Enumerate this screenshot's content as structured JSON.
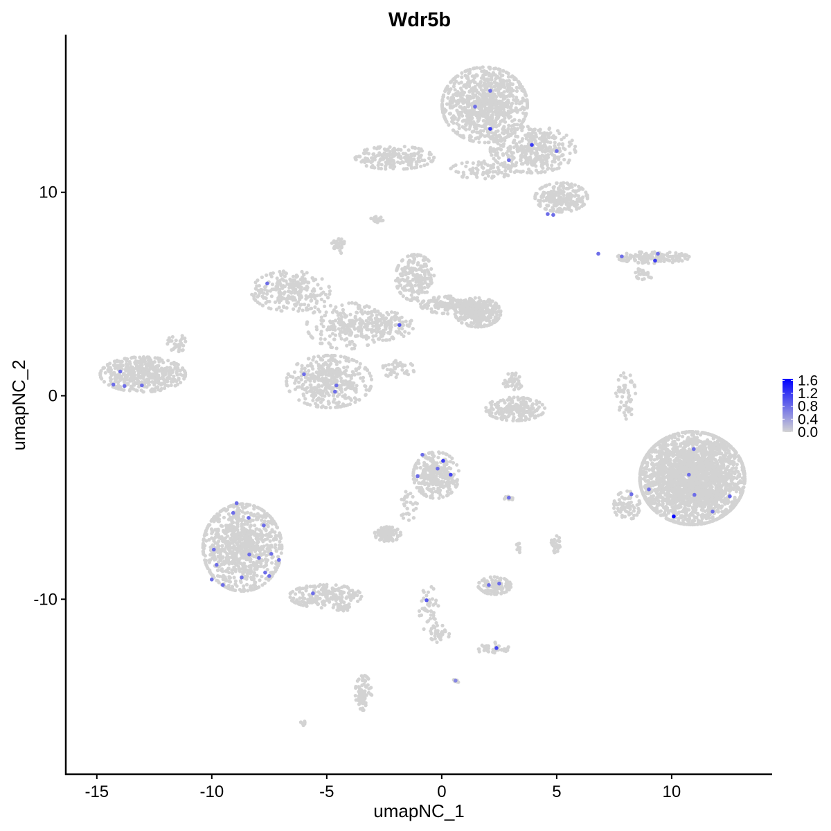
{
  "chart_data": {
    "type": "scatter",
    "title": "Wdr5b",
    "xlabel": "umapNC_1",
    "ylabel": "umapNC_2",
    "xlim": [
      -16.35,
      14.37
    ],
    "ylim": [
      -18.6,
      17.75
    ],
    "x_ticks": [
      "-15",
      "-10",
      "-5",
      "0",
      "5",
      "10"
    ],
    "x_tick_values": [
      -15,
      -10,
      -5,
      0,
      5,
      10
    ],
    "y_ticks": [
      "-10",
      "0",
      "10"
    ],
    "y_tick_values": [
      -10,
      0,
      10
    ],
    "grid": false,
    "color_scale": {
      "low_color": "#d3d3d3",
      "high_color": "#0000ff",
      "min": 0.0,
      "max": 1.65,
      "labels": [
        "1.6",
        "1.2",
        "0.8",
        "0.4",
        "0.0"
      ],
      "label_values": [
        1.6,
        1.2,
        0.8,
        0.4,
        0.0
      ],
      "legend_placement": "right"
    },
    "zero_expression_regions": [
      {
        "center": [
          1.87,
          14.3
        ],
        "spread": [
          1.3,
          1.3
        ],
        "n": 900
      },
      {
        "center": [
          3.97,
          12.1
        ],
        "spread": [
          1.3,
          0.8
        ],
        "n": 400
      },
      {
        "center": [
          5.2,
          9.75
        ],
        "spread": [
          0.8,
          0.5
        ],
        "n": 250
      },
      {
        "center": [
          -2.05,
          11.7
        ],
        "spread": [
          1.2,
          0.4
        ],
        "n": 200
      },
      {
        "center": [
          1.8,
          11.1
        ],
        "spread": [
          1.0,
          0.3
        ],
        "n": 80
      },
      {
        "center": [
          -2.8,
          8.65
        ],
        "spread": [
          0.2,
          0.15
        ],
        "n": 20
      },
      {
        "center": [
          -4.5,
          7.4
        ],
        "spread": [
          0.2,
          0.3
        ],
        "n": 30
      },
      {
        "center": [
          9.2,
          6.8
        ],
        "spread": [
          1.1,
          0.2
        ],
        "n": 150
      },
      {
        "center": [
          8.8,
          6.0
        ],
        "spread": [
          0.3,
          0.2
        ],
        "n": 25
      },
      {
        "center": [
          -6.57,
          5.14
        ],
        "spread": [
          1.2,
          0.7
        ],
        "n": 250
      },
      {
        "center": [
          -4.16,
          3.44
        ],
        "spread": [
          1.2,
          0.8
        ],
        "n": 200
      },
      {
        "center": [
          -4.9,
          0.7
        ],
        "spread": [
          1.3,
          0.9
        ],
        "n": 400
      },
      {
        "center": [
          -1.15,
          5.8
        ],
        "spread": [
          0.6,
          0.8
        ],
        "n": 200
      },
      {
        "center": [
          -2.65,
          3.44
        ],
        "spread": [
          1.0,
          0.5
        ],
        "n": 150
      },
      {
        "center": [
          1.57,
          4.1
        ],
        "spread": [
          0.7,
          0.5
        ],
        "n": 300
      },
      {
        "center": [
          0.36,
          4.46
        ],
        "spread": [
          0.9,
          0.3
        ],
        "n": 150
      },
      {
        "center": [
          -1.9,
          1.3
        ],
        "spread": [
          0.5,
          0.3
        ],
        "n": 40
      },
      {
        "center": [
          -13.0,
          1.05
        ],
        "spread": [
          1.3,
          0.6
        ],
        "n": 450
      },
      {
        "center": [
          -11.5,
          2.6
        ],
        "spread": [
          0.3,
          0.3
        ],
        "n": 30
      },
      {
        "center": [
          3.2,
          -0.65
        ],
        "spread": [
          0.9,
          0.4
        ],
        "n": 200
      },
      {
        "center": [
          3.1,
          0.7
        ],
        "spread": [
          0.3,
          0.3
        ],
        "n": 40
      },
      {
        "center": [
          8.0,
          0.0
        ],
        "spread": [
          0.3,
          0.8
        ],
        "n": 50
      },
      {
        "center": [
          10.9,
          -4.05
        ],
        "spread": [
          1.6,
          1.6
        ],
        "n": 2500
      },
      {
        "center": [
          8.05,
          -5.4
        ],
        "spread": [
          0.4,
          0.5
        ],
        "n": 80
      },
      {
        "center": [
          -0.24,
          -3.9
        ],
        "spread": [
          0.7,
          0.8
        ],
        "n": 300
      },
      {
        "center": [
          -2.35,
          -6.8
        ],
        "spread": [
          0.4,
          0.25
        ],
        "n": 100
      },
      {
        "center": [
          -1.45,
          -5.4
        ],
        "spread": [
          0.3,
          0.5
        ],
        "n": 30
      },
      {
        "center": [
          2.92,
          -5.0
        ],
        "spread": [
          0.15,
          0.1
        ],
        "n": 15
      },
      {
        "center": [
          4.97,
          -7.3
        ],
        "spread": [
          0.15,
          0.3
        ],
        "n": 25
      },
      {
        "center": [
          3.3,
          -7.45
        ],
        "spread": [
          0.1,
          0.3
        ],
        "n": 10
      },
      {
        "center": [
          -8.67,
          -7.46
        ],
        "spread": [
          1.2,
          1.5
        ],
        "n": 900
      },
      {
        "center": [
          -5.06,
          -9.85
        ],
        "spread": [
          1.1,
          0.4
        ],
        "n": 200
      },
      {
        "center": [
          -4.3,
          -10.35
        ],
        "spread": [
          0.3,
          0.15
        ],
        "n": 30
      },
      {
        "center": [
          2.3,
          -9.33
        ],
        "spread": [
          0.5,
          0.3
        ],
        "n": 100
      },
      {
        "center": [
          -0.55,
          -10.5
        ],
        "spread": [
          0.3,
          0.8
        ],
        "n": 40
      },
      {
        "center": [
          -0.1,
          -11.7
        ],
        "spread": [
          0.3,
          0.3
        ],
        "n": 30
      },
      {
        "center": [
          2.2,
          -12.4
        ],
        "spread": [
          0.5,
          0.2
        ],
        "n": 40
      },
      {
        "center": [
          -3.4,
          -14.6
        ],
        "spread": [
          0.25,
          0.6
        ],
        "n": 80
      },
      {
        "center": [
          -6.05,
          -16.1
        ],
        "spread": [
          0.1,
          0.1
        ],
        "n": 8
      },
      {
        "center": [
          0.6,
          -14.0
        ],
        "spread": [
          0.1,
          0.1
        ],
        "n": 6
      }
    ],
    "expressing_cells": [
      {
        "x": 2.11,
        "y": 14.99,
        "value": 0.8
      },
      {
        "x": 1.45,
        "y": 14.21,
        "value": 0.8
      },
      {
        "x": 2.11,
        "y": 13.12,
        "value": 1.2
      },
      {
        "x": 3.92,
        "y": 12.33,
        "value": 1.2
      },
      {
        "x": 5.0,
        "y": 12.03,
        "value": 0.8
      },
      {
        "x": 2.92,
        "y": 11.58,
        "value": 0.8
      },
      {
        "x": 4.61,
        "y": 8.93,
        "value": 0.8
      },
      {
        "x": 4.85,
        "y": 8.89,
        "value": 0.8
      },
      {
        "x": 6.81,
        "y": 6.98,
        "value": 0.8
      },
      {
        "x": 7.83,
        "y": 6.85,
        "value": 0.8
      },
      {
        "x": 9.28,
        "y": 6.64,
        "value": 1.2
      },
      {
        "x": 9.4,
        "y": 6.98,
        "value": 0.8
      },
      {
        "x": -7.59,
        "y": 5.52,
        "value": 0.8
      },
      {
        "x": -1.84,
        "y": 3.48,
        "value": 1.0
      },
      {
        "x": -5.99,
        "y": 1.06,
        "value": 0.8
      },
      {
        "x": -4.58,
        "y": 0.51,
        "value": 0.8
      },
      {
        "x": -4.64,
        "y": 0.2,
        "value": 0.8
      },
      {
        "x": -13.98,
        "y": 1.19,
        "value": 0.8
      },
      {
        "x": -14.28,
        "y": 0.55,
        "value": 0.8
      },
      {
        "x": -13.8,
        "y": 0.48,
        "value": 0.8
      },
      {
        "x": -13.04,
        "y": 0.51,
        "value": 0.8
      },
      {
        "x": -0.84,
        "y": -2.9,
        "value": 0.8
      },
      {
        "x": 0.06,
        "y": -3.2,
        "value": 1.2
      },
      {
        "x": -0.18,
        "y": -3.58,
        "value": 0.8
      },
      {
        "x": -1.05,
        "y": -3.95,
        "value": 0.8
      },
      {
        "x": 0.39,
        "y": -3.88,
        "value": 1.1
      },
      {
        "x": 2.92,
        "y": -5.01,
        "value": 0.8
      },
      {
        "x": 10.96,
        "y": -2.62,
        "value": 0.8
      },
      {
        "x": 10.75,
        "y": -3.88,
        "value": 0.8
      },
      {
        "x": 9.01,
        "y": -4.6,
        "value": 0.8
      },
      {
        "x": 8.25,
        "y": -4.84,
        "value": 0.8
      },
      {
        "x": 10.99,
        "y": -4.87,
        "value": 0.8
      },
      {
        "x": 12.53,
        "y": -4.94,
        "value": 0.9
      },
      {
        "x": 11.78,
        "y": -5.69,
        "value": 0.8
      },
      {
        "x": 10.09,
        "y": -5.93,
        "value": 1.6
      },
      {
        "x": -8.92,
        "y": -5.28,
        "value": 0.8
      },
      {
        "x": -9.07,
        "y": -5.76,
        "value": 0.8
      },
      {
        "x": -8.4,
        "y": -6.0,
        "value": 0.8
      },
      {
        "x": -7.74,
        "y": -6.37,
        "value": 0.8
      },
      {
        "x": -9.91,
        "y": -7.56,
        "value": 0.8
      },
      {
        "x": -8.37,
        "y": -7.8,
        "value": 0.8
      },
      {
        "x": -7.95,
        "y": -7.97,
        "value": 0.8
      },
      {
        "x": -7.41,
        "y": -7.77,
        "value": 0.8
      },
      {
        "x": -7.08,
        "y": -8.07,
        "value": 0.8
      },
      {
        "x": -9.79,
        "y": -8.31,
        "value": 0.8
      },
      {
        "x": -10.0,
        "y": -9.03,
        "value": 0.8
      },
      {
        "x": -9.52,
        "y": -9.3,
        "value": 0.8
      },
      {
        "x": -8.7,
        "y": -8.93,
        "value": 0.8
      },
      {
        "x": -7.68,
        "y": -8.69,
        "value": 0.8
      },
      {
        "x": -7.5,
        "y": -8.86,
        "value": 0.8
      },
      {
        "x": -5.6,
        "y": -9.71,
        "value": 0.8
      },
      {
        "x": -0.66,
        "y": -10.05,
        "value": 1.0
      },
      {
        "x": 2.05,
        "y": -9.3,
        "value": 0.8
      },
      {
        "x": 2.5,
        "y": -9.23,
        "value": 0.8
      },
      {
        "x": 2.38,
        "y": -12.4,
        "value": 1.1
      },
      {
        "x": 0.6,
        "y": -14.0,
        "value": 0.6
      }
    ]
  }
}
